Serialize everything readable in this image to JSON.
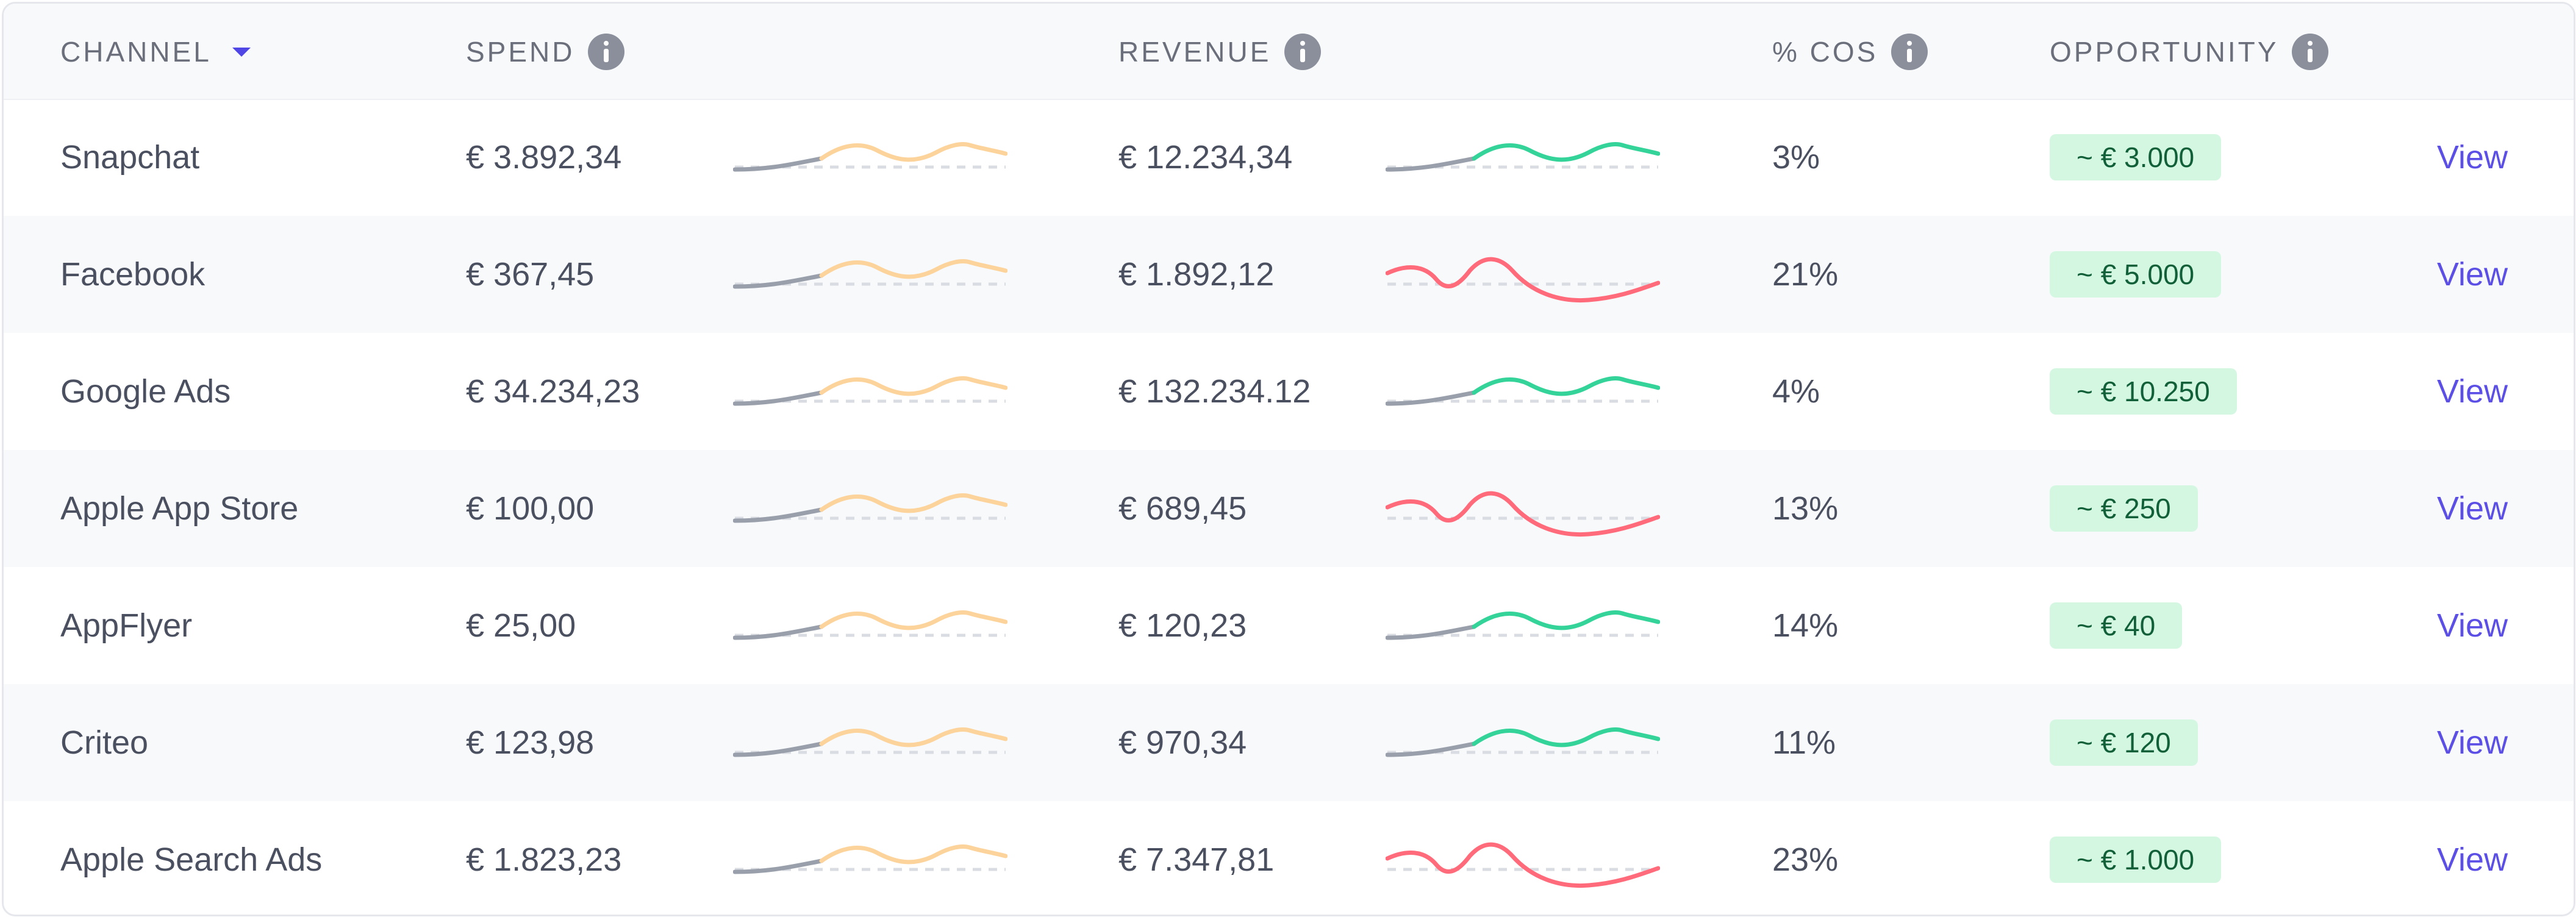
{
  "table": {
    "headers": {
      "channel": "CHANNEL",
      "spend": "SPEND",
      "revenue": "REVENUE",
      "cos": "% COS",
      "opportunity": "OPPORTUNITY"
    },
    "view_label": "View",
    "colors": {
      "spend_trend": "#fcd39b",
      "neutral_trend": "#9aa0ab",
      "revenue_up": "#34d399",
      "revenue_down": "#ff6b7a",
      "link": "#5b4fe6",
      "badge_bg": "#d4f7e1"
    },
    "rows": [
      {
        "channel": "Snapchat",
        "spend": "€ 3.892,34",
        "revenue": "€ 12.234,34",
        "revenue_trend": "up",
        "cos": "3%",
        "opportunity": "~ € 3.000"
      },
      {
        "channel": "Facebook",
        "spend": "€ 367,45",
        "revenue": "€ 1.892,12",
        "revenue_trend": "down",
        "cos": "21%",
        "opportunity": "~ € 5.000"
      },
      {
        "channel": "Google Ads",
        "spend": "€ 34.234,23",
        "revenue": "€ 132.234.12",
        "revenue_trend": "up",
        "cos": "4%",
        "opportunity": "~ € 10.250"
      },
      {
        "channel": "Apple App Store",
        "spend": "€ 100,00",
        "revenue": "€ 689,45",
        "revenue_trend": "down",
        "cos": "13%",
        "opportunity": "~ € 250"
      },
      {
        "channel": "AppFlyer",
        "spend": "€ 25,00",
        "revenue": "€ 120,23",
        "revenue_trend": "up",
        "cos": "14%",
        "opportunity": "~ € 40"
      },
      {
        "channel": "Criteo",
        "spend": "€ 123,98",
        "revenue": "€ 970,34",
        "revenue_trend": "up",
        "cos": "11%",
        "opportunity": "~ € 120"
      },
      {
        "channel": "Apple Search Ads",
        "spend": "€ 1.823,23",
        "revenue": "€ 7.347,81",
        "revenue_trend": "down",
        "cos": "23%",
        "opportunity": "~ € 1.000"
      }
    ]
  }
}
